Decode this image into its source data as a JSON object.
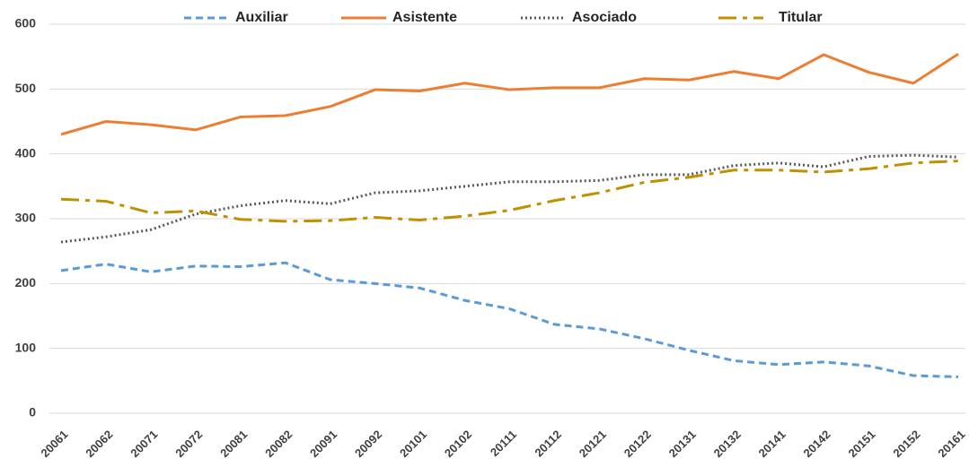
{
  "chart_data": {
    "type": "line",
    "categories": [
      "20061",
      "20062",
      "20071",
      "20072",
      "20081",
      "20082",
      "20091",
      "20092",
      "20101",
      "20102",
      "20111",
      "20112",
      "20121",
      "20122",
      "20131",
      "20132",
      "20141",
      "20142",
      "20151",
      "20152",
      "20161"
    ],
    "series": [
      {
        "name": "Auxiliar",
        "color": "#5b9bd5",
        "style": "dashed",
        "values": [
          220,
          230,
          218,
          227,
          226,
          232,
          206,
          200,
          193,
          174,
          161,
          137,
          130,
          115,
          97,
          81,
          75,
          79,
          73,
          58,
          56
        ]
      },
      {
        "name": "Asistente",
        "color": "#ed7d31",
        "style": "solid",
        "values": [
          430,
          450,
          445,
          437,
          457,
          459,
          473,
          499,
          497,
          509,
          499,
          502,
          502,
          516,
          514,
          527,
          516,
          553,
          526,
          509,
          554
        ]
      },
      {
        "name": "Asociado",
        "color": "#595959",
        "style": "dotted",
        "values": [
          264,
          272,
          283,
          307,
          320,
          328,
          323,
          340,
          343,
          350,
          357,
          357,
          359,
          368,
          368,
          382,
          386,
          380,
          396,
          398,
          395
        ]
      },
      {
        "name": "Titular",
        "color": "#bf9000",
        "style": "dashdot",
        "values": [
          330,
          327,
          309,
          312,
          299,
          296,
          297,
          302,
          298,
          304,
          313,
          328,
          340,
          356,
          364,
          375,
          375,
          372,
          377,
          386,
          389
        ]
      }
    ],
    "ylim": [
      0,
      600
    ],
    "yticks": [
      0,
      100,
      200,
      300,
      400,
      500,
      600
    ],
    "grid": true,
    "legend": "top"
  }
}
